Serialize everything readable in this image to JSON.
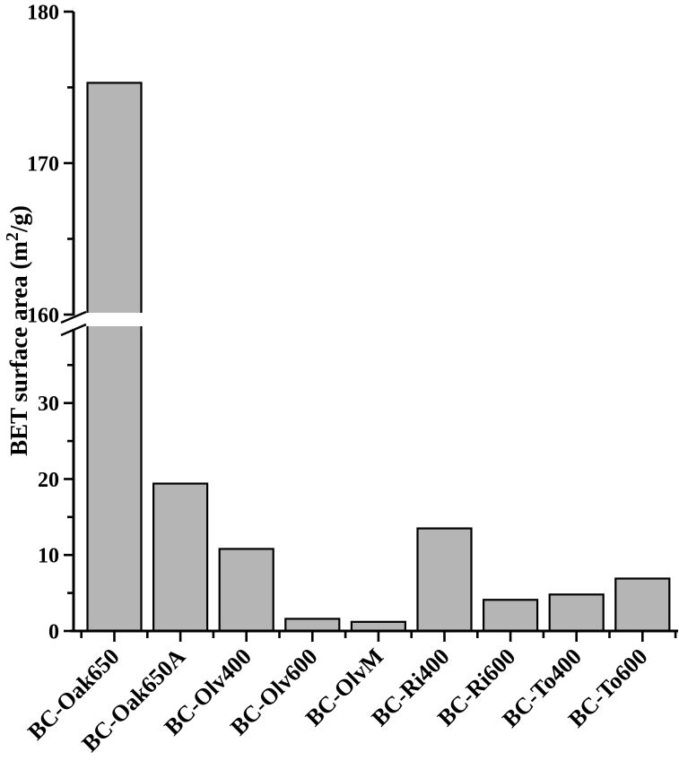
{
  "chart_data": {
    "type": "bar",
    "title": "",
    "xlabel": "",
    "ylabel": "BET surface area (m²/g)",
    "ylabel_parts": {
      "prefix": "BET surface area (m",
      "superscript": "2",
      "suffix": "/g)"
    },
    "categories": [
      "BC-Oak650",
      "BC-Oak650A",
      "BC-Olv400",
      "BC-Olv600",
      "BC-OlvM",
      "BC-Ri400",
      "BC-Ri600",
      "BC-To400",
      "BC-To600"
    ],
    "values": [
      175.3,
      19.4,
      10.8,
      1.6,
      1.2,
      13.5,
      4.1,
      4.8,
      6.9
    ],
    "y_axis": {
      "broken": true,
      "bottom_segment": {
        "range": [
          0,
          39.5
        ],
        "major_ticks": [
          0,
          10,
          20,
          30
        ],
        "minor_ticks": [
          5,
          15,
          25,
          35
        ]
      },
      "top_segment": {
        "range": [
          160,
          180
        ],
        "major_ticks": [
          160,
          170,
          180
        ],
        "minor_ticks": [
          165,
          175
        ]
      }
    },
    "grid": false,
    "legend": false,
    "bar_fill": "#b5b5b5",
    "bar_stroke": "#000000",
    "axis_color": "#000000",
    "background": "#ffffff"
  }
}
